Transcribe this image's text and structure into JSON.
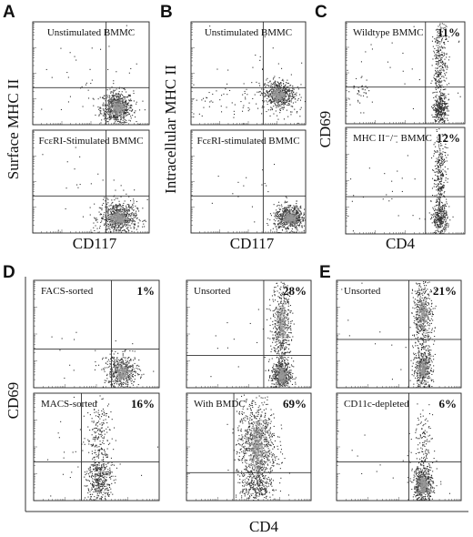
{
  "panel_letters": [
    "A",
    "B",
    "C",
    "D",
    "E"
  ],
  "axis_titles": {
    "A_y": "Surface MHC II",
    "A_x": "CD117",
    "B_y": "Intracellular MHC II",
    "B_x": "CD117",
    "C_y": "CD69",
    "C_x": "CD4",
    "D_y": "CD69",
    "DE_x": "CD4"
  },
  "colors": {
    "frame": "#222222",
    "dots": "#333333",
    "dot_core": "#999999"
  },
  "chart_data": [
    {
      "type": "scatter",
      "panel": "A",
      "label": "Unstimulated BMMC",
      "percent": "",
      "xlabel": "CD117",
      "ylabel": "Surface MHC II",
      "gate": {
        "x": 0.63,
        "y": 0.36
      },
      "populations": [
        {
          "x": 0.72,
          "y": 0.17,
          "sx": 0.07,
          "sy": 0.08,
          "n": 650
        },
        {
          "x": 0.55,
          "y": 0.42,
          "sx": 0.3,
          "sy": 0.3,
          "n": 40
        }
      ]
    },
    {
      "type": "scatter",
      "panel": "A",
      "label": "FcεRI-Stimulated BMMC",
      "percent": "",
      "xlabel": "CD117",
      "ylabel": "Surface MHC II",
      "gate": {
        "x": 0.63,
        "y": 0.36
      },
      "populations": [
        {
          "x": 0.73,
          "y": 0.15,
          "sx": 0.08,
          "sy": 0.08,
          "n": 650
        },
        {
          "x": 0.55,
          "y": 0.4,
          "sx": 0.3,
          "sy": 0.28,
          "n": 35
        }
      ]
    },
    {
      "type": "scatter",
      "panel": "B",
      "label": "Unstimulated BMMC",
      "percent": "",
      "xlabel": "CD117",
      "ylabel": "Intracellular MHC II",
      "gate": {
        "x": 0.63,
        "y": 0.36
      },
      "populations": [
        {
          "x": 0.76,
          "y": 0.3,
          "sx": 0.07,
          "sy": 0.07,
          "n": 500
        },
        {
          "x": 0.45,
          "y": 0.24,
          "sx": 0.3,
          "sy": 0.12,
          "n": 110
        },
        {
          "x": 0.6,
          "y": 0.55,
          "sx": 0.3,
          "sy": 0.3,
          "n": 25
        }
      ]
    },
    {
      "type": "scatter",
      "panel": "B",
      "label": "FcεRI-stimulated BMMC",
      "percent": "",
      "xlabel": "CD117",
      "ylabel": "Intracellular MHC II",
      "gate": {
        "x": 0.63,
        "y": 0.36
      },
      "populations": [
        {
          "x": 0.86,
          "y": 0.15,
          "sx": 0.07,
          "sy": 0.06,
          "n": 600
        },
        {
          "x": 0.6,
          "y": 0.35,
          "sx": 0.3,
          "sy": 0.25,
          "n": 25
        }
      ]
    },
    {
      "type": "scatter",
      "panel": "C",
      "label": "Wildtype BMMC",
      "percent": "11%",
      "xlabel": "CD4",
      "ylabel": "CD69",
      "gate": {
        "x": 0.67,
        "y": 0.36
      },
      "populations": [
        {
          "x": 0.79,
          "y": 0.55,
          "sx": 0.03,
          "sy": 0.22,
          "n": 330
        },
        {
          "x": 0.79,
          "y": 0.15,
          "sx": 0.03,
          "sy": 0.07,
          "n": 280
        },
        {
          "x": 0.1,
          "y": 0.3,
          "sx": 0.06,
          "sy": 0.08,
          "n": 40
        },
        {
          "x": 0.5,
          "y": 0.4,
          "sx": 0.35,
          "sy": 0.3,
          "n": 30
        }
      ]
    },
    {
      "type": "scatter",
      "panel": "C",
      "label": "MHC II⁻/⁻ BMMC",
      "percent": "12%",
      "xlabel": "CD4",
      "ylabel": "CD69",
      "gate": {
        "x": 0.67,
        "y": 0.35
      },
      "populations": [
        {
          "x": 0.79,
          "y": 0.55,
          "sx": 0.03,
          "sy": 0.22,
          "n": 330
        },
        {
          "x": 0.79,
          "y": 0.14,
          "sx": 0.03,
          "sy": 0.07,
          "n": 280
        },
        {
          "x": 0.4,
          "y": 0.3,
          "sx": 0.35,
          "sy": 0.25,
          "n": 35
        }
      ]
    },
    {
      "type": "scatter",
      "panel": "D",
      "label": "FACS-sorted",
      "percent": "1%",
      "xlabel": "CD4",
      "ylabel": "CD69",
      "gate": {
        "x": 0.62,
        "y": 0.36
      },
      "populations": [
        {
          "x": 0.7,
          "y": 0.15,
          "sx": 0.07,
          "sy": 0.08,
          "n": 450
        },
        {
          "x": 0.55,
          "y": 0.3,
          "sx": 0.25,
          "sy": 0.2,
          "n": 30
        }
      ]
    },
    {
      "type": "scatter",
      "panel": "D",
      "label": "MACS-sorted",
      "percent": "16%",
      "xlabel": "CD4",
      "ylabel": "CD69",
      "gate": {
        "x": 0.38,
        "y": 0.36
      },
      "populations": [
        {
          "x": 0.52,
          "y": 0.2,
          "sx": 0.05,
          "sy": 0.12,
          "n": 380
        },
        {
          "x": 0.52,
          "y": 0.6,
          "sx": 0.05,
          "sy": 0.18,
          "n": 200
        },
        {
          "x": 0.3,
          "y": 0.4,
          "sx": 0.25,
          "sy": 0.3,
          "n": 30
        }
      ]
    },
    {
      "type": "scatter",
      "panel": "D",
      "label": "Unsorted",
      "percent": "28%",
      "xlabel": "CD4",
      "ylabel": "CD69",
      "gate": {
        "x": 0.62,
        "y": 0.3
      },
      "populations": [
        {
          "x": 0.76,
          "y": 0.6,
          "sx": 0.04,
          "sy": 0.2,
          "n": 450
        },
        {
          "x": 0.76,
          "y": 0.12,
          "sx": 0.04,
          "sy": 0.08,
          "n": 450
        },
        {
          "x": 0.55,
          "y": 0.35,
          "sx": 0.3,
          "sy": 0.25,
          "n": 25
        }
      ]
    },
    {
      "type": "scatter",
      "panel": "D",
      "label": "With BMDC",
      "percent": "69%",
      "xlabel": "CD4",
      "ylabel": "CD69",
      "gate": {
        "x": 0.38,
        "y": 0.26
      },
      "populations": [
        {
          "x": 0.56,
          "y": 0.5,
          "sx": 0.08,
          "sy": 0.24,
          "n": 900
        },
        {
          "x": 0.56,
          "y": 0.12,
          "sx": 0.06,
          "sy": 0.07,
          "n": 200
        }
      ]
    },
    {
      "type": "scatter",
      "panel": "E",
      "label": "Unsorted",
      "percent": "21%",
      "xlabel": "CD4",
      "ylabel": "CD69",
      "gate": {
        "x": 0.58,
        "y": 0.45
      },
      "populations": [
        {
          "x": 0.69,
          "y": 0.68,
          "sx": 0.04,
          "sy": 0.17,
          "n": 420
        },
        {
          "x": 0.69,
          "y": 0.18,
          "sx": 0.04,
          "sy": 0.1,
          "n": 400
        },
        {
          "x": 0.5,
          "y": 0.4,
          "sx": 0.3,
          "sy": 0.3,
          "n": 25
        }
      ]
    },
    {
      "type": "scatter",
      "panel": "E",
      "label": "CD11c-depleted",
      "percent": "6%",
      "xlabel": "CD4",
      "ylabel": "CD69",
      "gate": {
        "x": 0.58,
        "y": 0.36
      },
      "populations": [
        {
          "x": 0.69,
          "y": 0.15,
          "sx": 0.04,
          "sy": 0.09,
          "n": 520
        },
        {
          "x": 0.69,
          "y": 0.55,
          "sx": 0.04,
          "sy": 0.15,
          "n": 120
        },
        {
          "x": 0.5,
          "y": 0.4,
          "sx": 0.3,
          "sy": 0.28,
          "n": 30
        }
      ]
    }
  ]
}
